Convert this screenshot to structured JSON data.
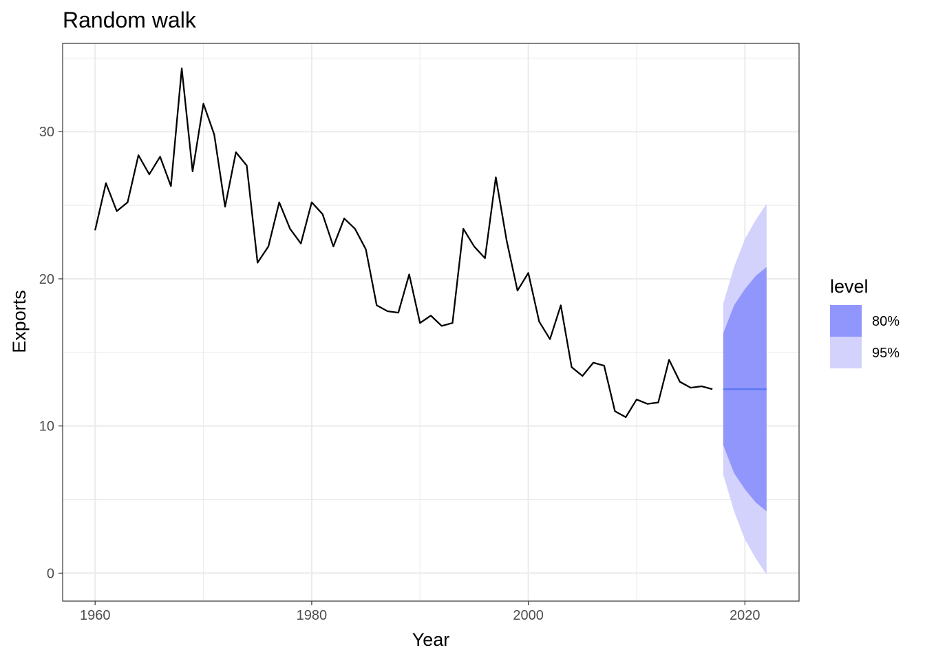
{
  "chart_data": {
    "type": "line",
    "title": "Random walk",
    "xlabel": "Year",
    "ylabel": "Exports",
    "xlim": [
      1957,
      2025
    ],
    "ylim": [
      -1.9,
      36
    ],
    "x_ticks": [
      1960,
      1980,
      2000,
      2020
    ],
    "x_tick_labels": [
      "1960",
      "1980",
      "2000",
      "2020"
    ],
    "y_ticks": [
      0,
      10,
      20,
      30
    ],
    "y_tick_labels": [
      "0",
      "10",
      "20",
      "30"
    ],
    "grid": true,
    "legend_position": "right",
    "series": [
      {
        "type": "line",
        "color": "#000000",
        "x": [
          1960,
          1961,
          1962,
          1963,
          1964,
          1965,
          1966,
          1967,
          1968,
          1969,
          1970,
          1971,
          1972,
          1973,
          1974,
          1975,
          1976,
          1977,
          1978,
          1979,
          1980,
          1981,
          1982,
          1983,
          1984,
          1985,
          1986,
          1987,
          1988,
          1989,
          1990,
          1991,
          1992,
          1993,
          1994,
          1995,
          1996,
          1997,
          1998,
          1999,
          2000,
          2001,
          2002,
          2003,
          2004,
          2005,
          2006,
          2007,
          2008,
          2009,
          2010,
          2011,
          2012,
          2013,
          2014,
          2015,
          2016,
          2017
        ],
        "values": [
          23.3,
          26.5,
          24.6,
          25.2,
          28.4,
          27.1,
          28.3,
          26.3,
          34.3,
          27.3,
          31.9,
          29.8,
          24.9,
          28.6,
          27.7,
          21.1,
          22.2,
          25.2,
          23.4,
          22.4,
          25.2,
          24.4,
          22.2,
          24.1,
          23.4,
          22.0,
          18.2,
          17.8,
          17.7,
          20.3,
          17.0,
          17.5,
          16.8,
          17.0,
          23.4,
          22.2,
          21.4,
          26.9,
          22.6,
          19.2,
          20.4,
          17.1,
          15.9,
          18.2,
          14.0,
          13.4,
          14.3,
          14.1,
          11.0,
          10.6,
          11.8,
          11.5,
          11.6,
          14.5,
          13.0,
          12.6,
          12.7,
          12.5
        ]
      },
      {
        "type": "point_forecast",
        "color": "#5b78f5",
        "x": [
          2018,
          2022
        ],
        "values": [
          12.5,
          12.5
        ]
      }
    ],
    "forecast_intervals": {
      "x": [
        2018,
        2019,
        2020,
        2021,
        2022
      ],
      "level_80": {
        "color": "#9196fc",
        "lower": [
          8.7,
          6.8,
          5.7,
          4.8,
          4.2
        ],
        "upper": [
          16.3,
          18.2,
          19.3,
          20.2,
          20.8
        ]
      },
      "level_95": {
        "color": "#d2d2fd",
        "lower": [
          6.7,
          4.2,
          2.3,
          1.0,
          -0.1
        ],
        "upper": [
          18.3,
          20.8,
          22.7,
          24.0,
          25.1
        ]
      }
    },
    "legend": {
      "title": "level",
      "items": [
        {
          "label": "80%",
          "color": "#9196fc"
        },
        {
          "label": "95%",
          "color": "#d2d2fd"
        }
      ]
    }
  }
}
